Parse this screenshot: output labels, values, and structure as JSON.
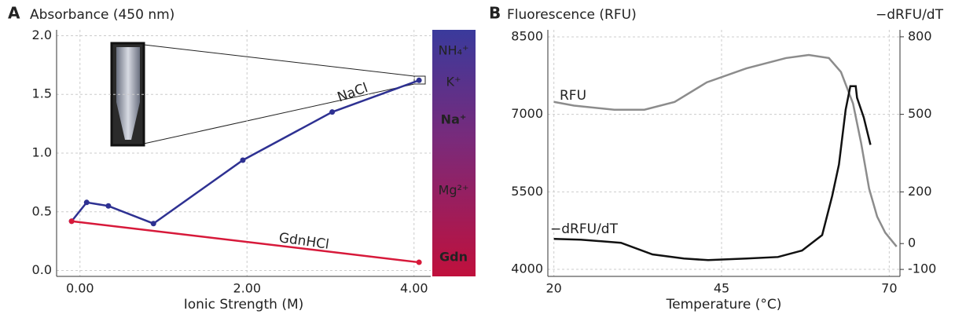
{
  "chart_data": [
    {
      "type": "line",
      "panel_label": "A",
      "title": "Absorbance (450 nm)",
      "x_label": "Ionic Strength (M)",
      "xlim": [
        -0.28,
        4.2
      ],
      "ylim": [
        -0.05,
        2.05
      ],
      "xticks": [
        {
          "value": 0,
          "label": "0.00"
        },
        {
          "value": 2,
          "label": "2.00"
        },
        {
          "value": 4,
          "label": "4.00"
        }
      ],
      "yticks": [
        {
          "value": 0,
          "label": "0.0"
        },
        {
          "value": 0.5,
          "label": "0.5"
        },
        {
          "value": 1,
          "label": "1.0"
        },
        {
          "value": 1.5,
          "label": "1.5"
        },
        {
          "value": 2,
          "label": "2.0"
        }
      ],
      "grid": true,
      "series": [
        {
          "name": "NaCl",
          "color": "#2e3192",
          "markers": true,
          "x": [
            -0.1,
            0.08,
            0.34,
            0.88,
            1.95,
            3.02,
            4.06
          ],
          "values": [
            0.42,
            0.58,
            0.55,
            0.4,
            0.94,
            1.35,
            1.62
          ]
        },
        {
          "name": "GdnHCl",
          "color": "#d7193a",
          "markers": true,
          "x": [
            -0.1,
            4.06
          ],
          "values": [
            0.42,
            0.07
          ]
        }
      ],
      "colorbar": {
        "labels": [
          "NH₄⁺",
          "K⁺",
          "Na⁺",
          "Mg²⁺",
          "Gdn"
        ],
        "bold": [
          false,
          false,
          true,
          false,
          true
        ]
      }
    },
    {
      "type": "line",
      "panel_label": "B",
      "title": "Fluorescence (RFU)",
      "y2_label": "−dRFU/dT",
      "x_label": "Temperature (°C)",
      "xlim": [
        19.1,
        71.6
      ],
      "ylim": [
        3864,
        8636
      ],
      "y2lim": [
        -127,
        827
      ],
      "xticks": [
        20,
        45,
        70
      ],
      "yticks": [
        4000,
        5500,
        7000,
        8500
      ],
      "y2ticks": [
        -100,
        0,
        200,
        500,
        800
      ],
      "grid": true,
      "series": [
        {
          "name": "RFU",
          "color": "#8c8c8c",
          "markers": false,
          "x": [
            20,
            23,
            29,
            33.5,
            38,
            42.8,
            48.7,
            54.6,
            58,
            61,
            62.8,
            64.6,
            65.8,
            67,
            68.2,
            69.4,
            71.1
          ],
          "values": [
            7242,
            7170,
            7090,
            7090,
            7240,
            7620,
            7890,
            8090,
            8150,
            8090,
            7820,
            7210,
            6450,
            5560,
            5020,
            4710,
            4440
          ]
        },
        {
          "name": "−dRFU/dT",
          "color": "#111111",
          "markers": false,
          "axis": "y2",
          "x": [
            20,
            24,
            30,
            34.7,
            39.4,
            43,
            48.7,
            53.4,
            57,
            60,
            61.5,
            62.5,
            63.5,
            64.2,
            65,
            65.2,
            66.2,
            67.2
          ],
          "values": [
            18,
            15,
            3,
            -42,
            -58,
            -64,
            -58,
            -52,
            -27,
            33,
            185,
            306,
            518,
            609,
            609,
            564,
            488,
            382
          ]
        }
      ]
    }
  ]
}
